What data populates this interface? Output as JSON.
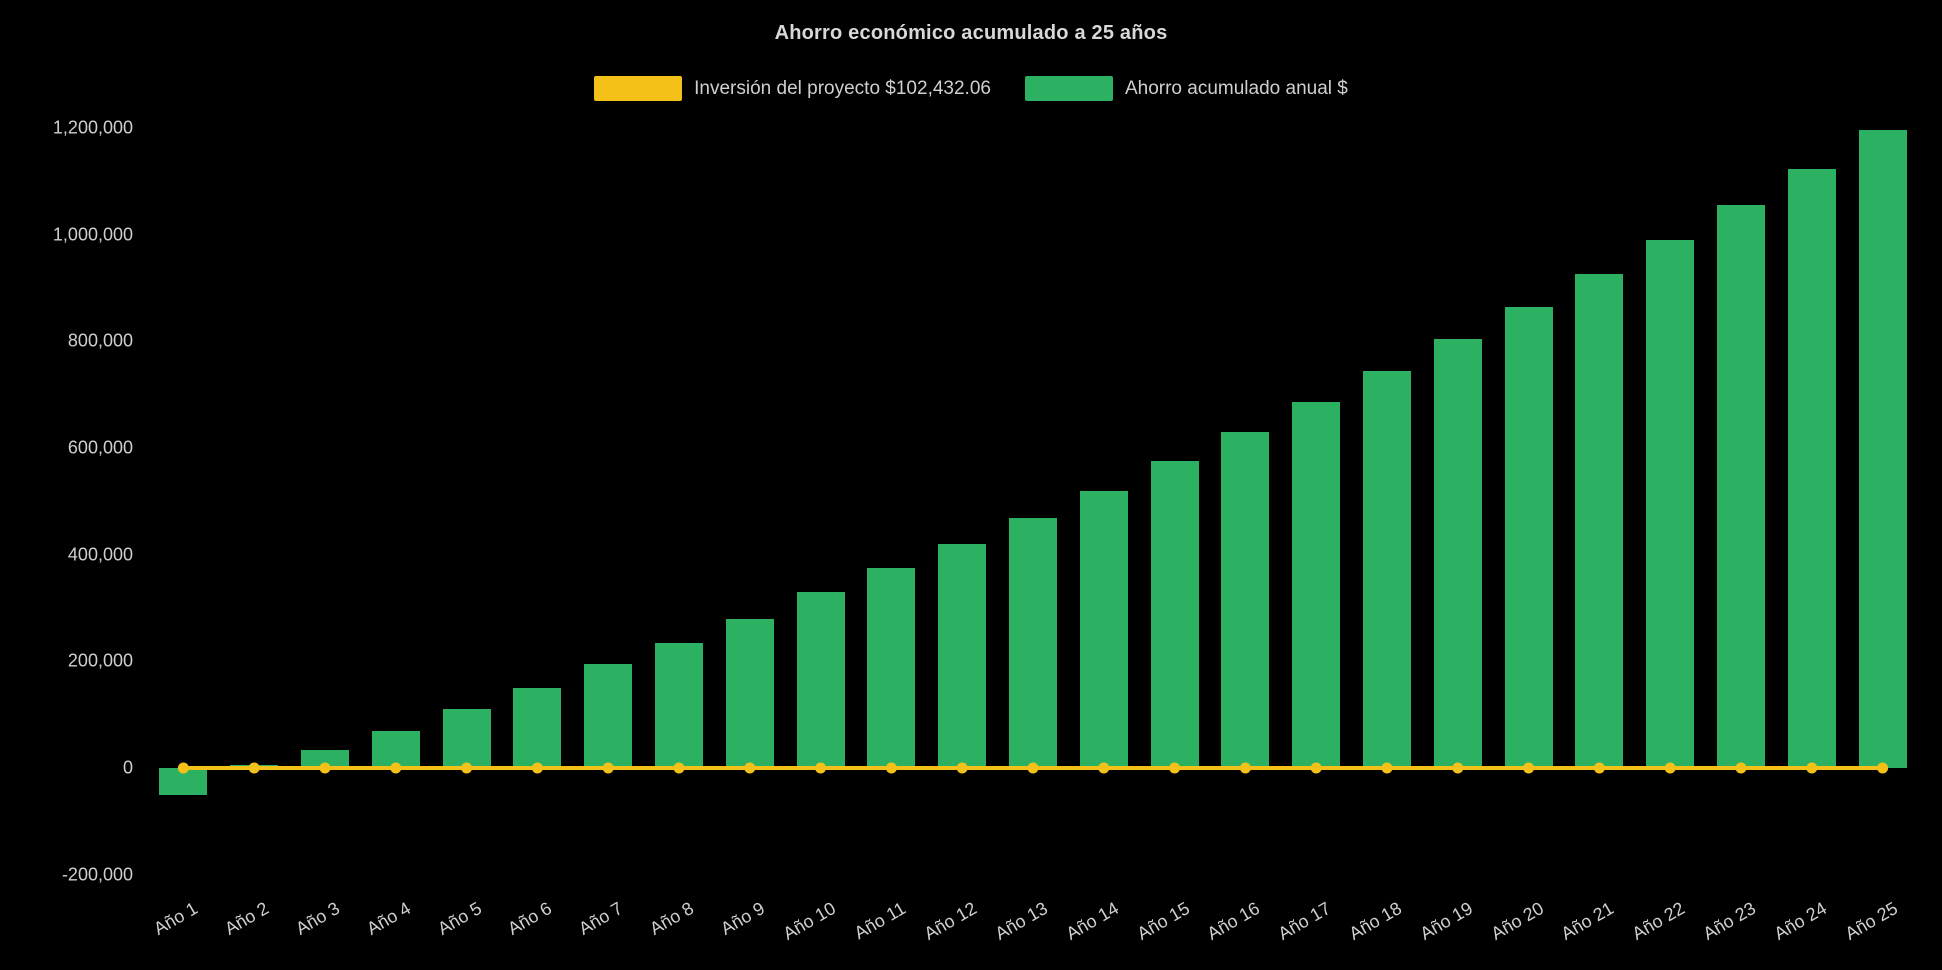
{
  "chart_data": {
    "type": "bar",
    "title": "Ahorro económico acumulado a 25 años",
    "categories": [
      "Año 1",
      "Año 2",
      "Año 3",
      "Año 4",
      "Año 5",
      "Año 6",
      "Año 7",
      "Año 8",
      "Año 9",
      "Año 10",
      "Año 11",
      "Año 12",
      "Año 13",
      "Año 14",
      "Año 15",
      "Año 16",
      "Año 17",
      "Año 18",
      "Año 19",
      "Año 20",
      "Año 21",
      "Año 22",
      "Año 23",
      "Año 24",
      "Año 25"
    ],
    "series": [
      {
        "name": "Inversión del proyecto $102,432.06",
        "type": "line",
        "color": "#F3C117",
        "values": [
          0,
          0,
          0,
          0,
          0,
          0,
          0,
          0,
          0,
          0,
          0,
          0,
          0,
          0,
          0,
          0,
          0,
          0,
          0,
          0,
          0,
          0,
          0,
          0,
          0
        ]
      },
      {
        "name": "Ahorro acumulado anual $",
        "type": "bar",
        "color": "#2CB163",
        "values": [
          -50000,
          5000,
          33000,
          70000,
          110000,
          150000,
          195000,
          235000,
          280000,
          330000,
          375000,
          420000,
          468000,
          520000,
          575000,
          630000,
          686000,
          744000,
          804000,
          864000,
          926000,
          990000,
          1056000,
          1124000,
          1196000
        ]
      }
    ],
    "ylim": [
      -200000,
      1200000
    ],
    "yticks": [
      -200000,
      0,
      200000,
      400000,
      600000,
      800000,
      1000000,
      1200000
    ],
    "grid": false,
    "legend_position": "top",
    "background": "#000000",
    "text_color": "#cfcfcf"
  }
}
